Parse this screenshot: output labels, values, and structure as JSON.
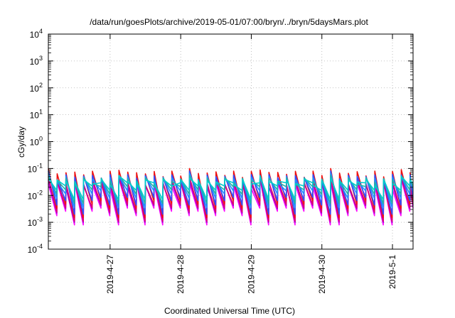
{
  "chart_data": {
    "type": "line",
    "title": "/data/run/goesPlots/archive/2019-05-01/07:00/bryn/../bryn/5daysMars.plot",
    "xlabel": "Coordinated Universal Time (UTC)",
    "ylabel": "cGy/day",
    "y_scale": "log",
    "ylim": [
      0.0001,
      10000
    ],
    "y_ticks": [
      {
        "base": "10",
        "exp": "-4"
      },
      {
        "base": "10",
        "exp": "-3"
      },
      {
        "base": "10",
        "exp": "-2"
      },
      {
        "base": "10",
        "exp": "-1"
      },
      {
        "base": "10",
        "exp": "0"
      },
      {
        "base": "10",
        "exp": "1"
      },
      {
        "base": "10",
        "exp": "2"
      },
      {
        "base": "10",
        "exp": "3"
      },
      {
        "base": "10",
        "exp": "4"
      }
    ],
    "xlim": [
      "2019-04-26 03:00",
      "2019-05-01 07:00"
    ],
    "x_ticks": [
      "2019-4-27",
      "2019-4-28",
      "2019-4-29",
      "2019-4-30",
      "2019-5-1"
    ],
    "x_tick_values": [
      "2019-04-27",
      "2019-04-28",
      "2019-04-29",
      "2019-04-30",
      "2019-05-01"
    ],
    "grid": true,
    "sawtooth_period_hours": 3,
    "series": [
      {
        "color": "#ff00ff",
        "peak": 0.03,
        "trough": 0.0008
      },
      {
        "color": "#9400d3",
        "peak": 0.035,
        "trough": 0.001
      },
      {
        "color": "#e0006e",
        "peak": 0.04,
        "trough": 0.0011
      },
      {
        "color": "#ee1111",
        "peak": 0.08,
        "trough": 0.0015
      },
      {
        "color": "#2f4fff",
        "peak": 0.06,
        "trough": 0.002
      },
      {
        "color": "#1e90ff",
        "peak": 0.05,
        "trough": 0.0035
      },
      {
        "color": "#20b2aa",
        "peak": 0.045,
        "trough": 0.005
      },
      {
        "color": "#00cccc",
        "peak": 0.04,
        "trough": 0.007
      }
    ]
  }
}
